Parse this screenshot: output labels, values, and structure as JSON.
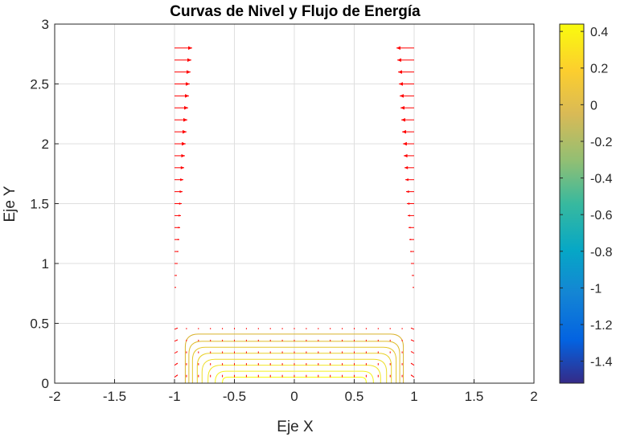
{
  "chart_data": {
    "type": "contour",
    "title": "Curvas de Nivel y Flujo de Energía",
    "xlabel": "Eje X",
    "ylabel": "Eje Y",
    "xlim": [
      -2,
      2
    ],
    "ylim": [
      0,
      3
    ],
    "xticks": [
      "-2",
      "-1.5",
      "-1",
      "-0.5",
      "0",
      "0.5",
      "1",
      "1.5",
      "2"
    ],
    "yticks": [
      "0",
      "0.5",
      "1",
      "1.5",
      "2",
      "2.5",
      "3"
    ],
    "grid": true,
    "colormap": "parula",
    "colorbar": {
      "range": [
        -1.52,
        0.44
      ],
      "ticks": [
        "0.4",
        "0.2",
        "0",
        "-0.2",
        "-0.4",
        "-0.6",
        "-0.8",
        "-1",
        "-1.2",
        "-1.4"
      ]
    },
    "contour_levels": [
      {
        "level": 0.44,
        "half_width": 0.6,
        "top": 0.05,
        "color": "#f9fb0e"
      },
      {
        "level": 0.38,
        "half_width": 0.66,
        "top": 0.1,
        "color": "#f5f11e"
      },
      {
        "level": 0.32,
        "half_width": 0.72,
        "top": 0.15,
        "color": "#f2e626"
      },
      {
        "level": 0.26,
        "half_width": 0.77,
        "top": 0.2,
        "color": "#eedc2a"
      },
      {
        "level": 0.2,
        "half_width": 0.81,
        "top": 0.25,
        "color": "#e9d12b"
      },
      {
        "level": 0.14,
        "half_width": 0.85,
        "top": 0.3,
        "color": "#e4c72c"
      },
      {
        "level": 0.08,
        "half_width": 0.88,
        "top": 0.35,
        "color": "#dfbd2c"
      },
      {
        "level": 0.02,
        "half_width": 0.91,
        "top": 0.41,
        "color": "#d9b32b"
      }
    ],
    "quiver": {
      "color": "#ff0000",
      "columns": [
        {
          "x": -1.0,
          "y_from": 0.8,
          "y_to": 2.8,
          "step": 0.1,
          "direction": "right"
        },
        {
          "x": 0.85,
          "y_from": 0.8,
          "y_to": 2.8,
          "step": 0.1,
          "direction": "left"
        }
      ],
      "interior_grid": {
        "x_from": -1.0,
        "x_to": 1.0,
        "x_step": 0.1,
        "y_from": 0.05,
        "y_to": 0.5,
        "y_step": 0.1
      }
    }
  },
  "colors": {
    "axis": "#262626",
    "grid": "#dfdfdf",
    "arrow": "#ff0000"
  }
}
